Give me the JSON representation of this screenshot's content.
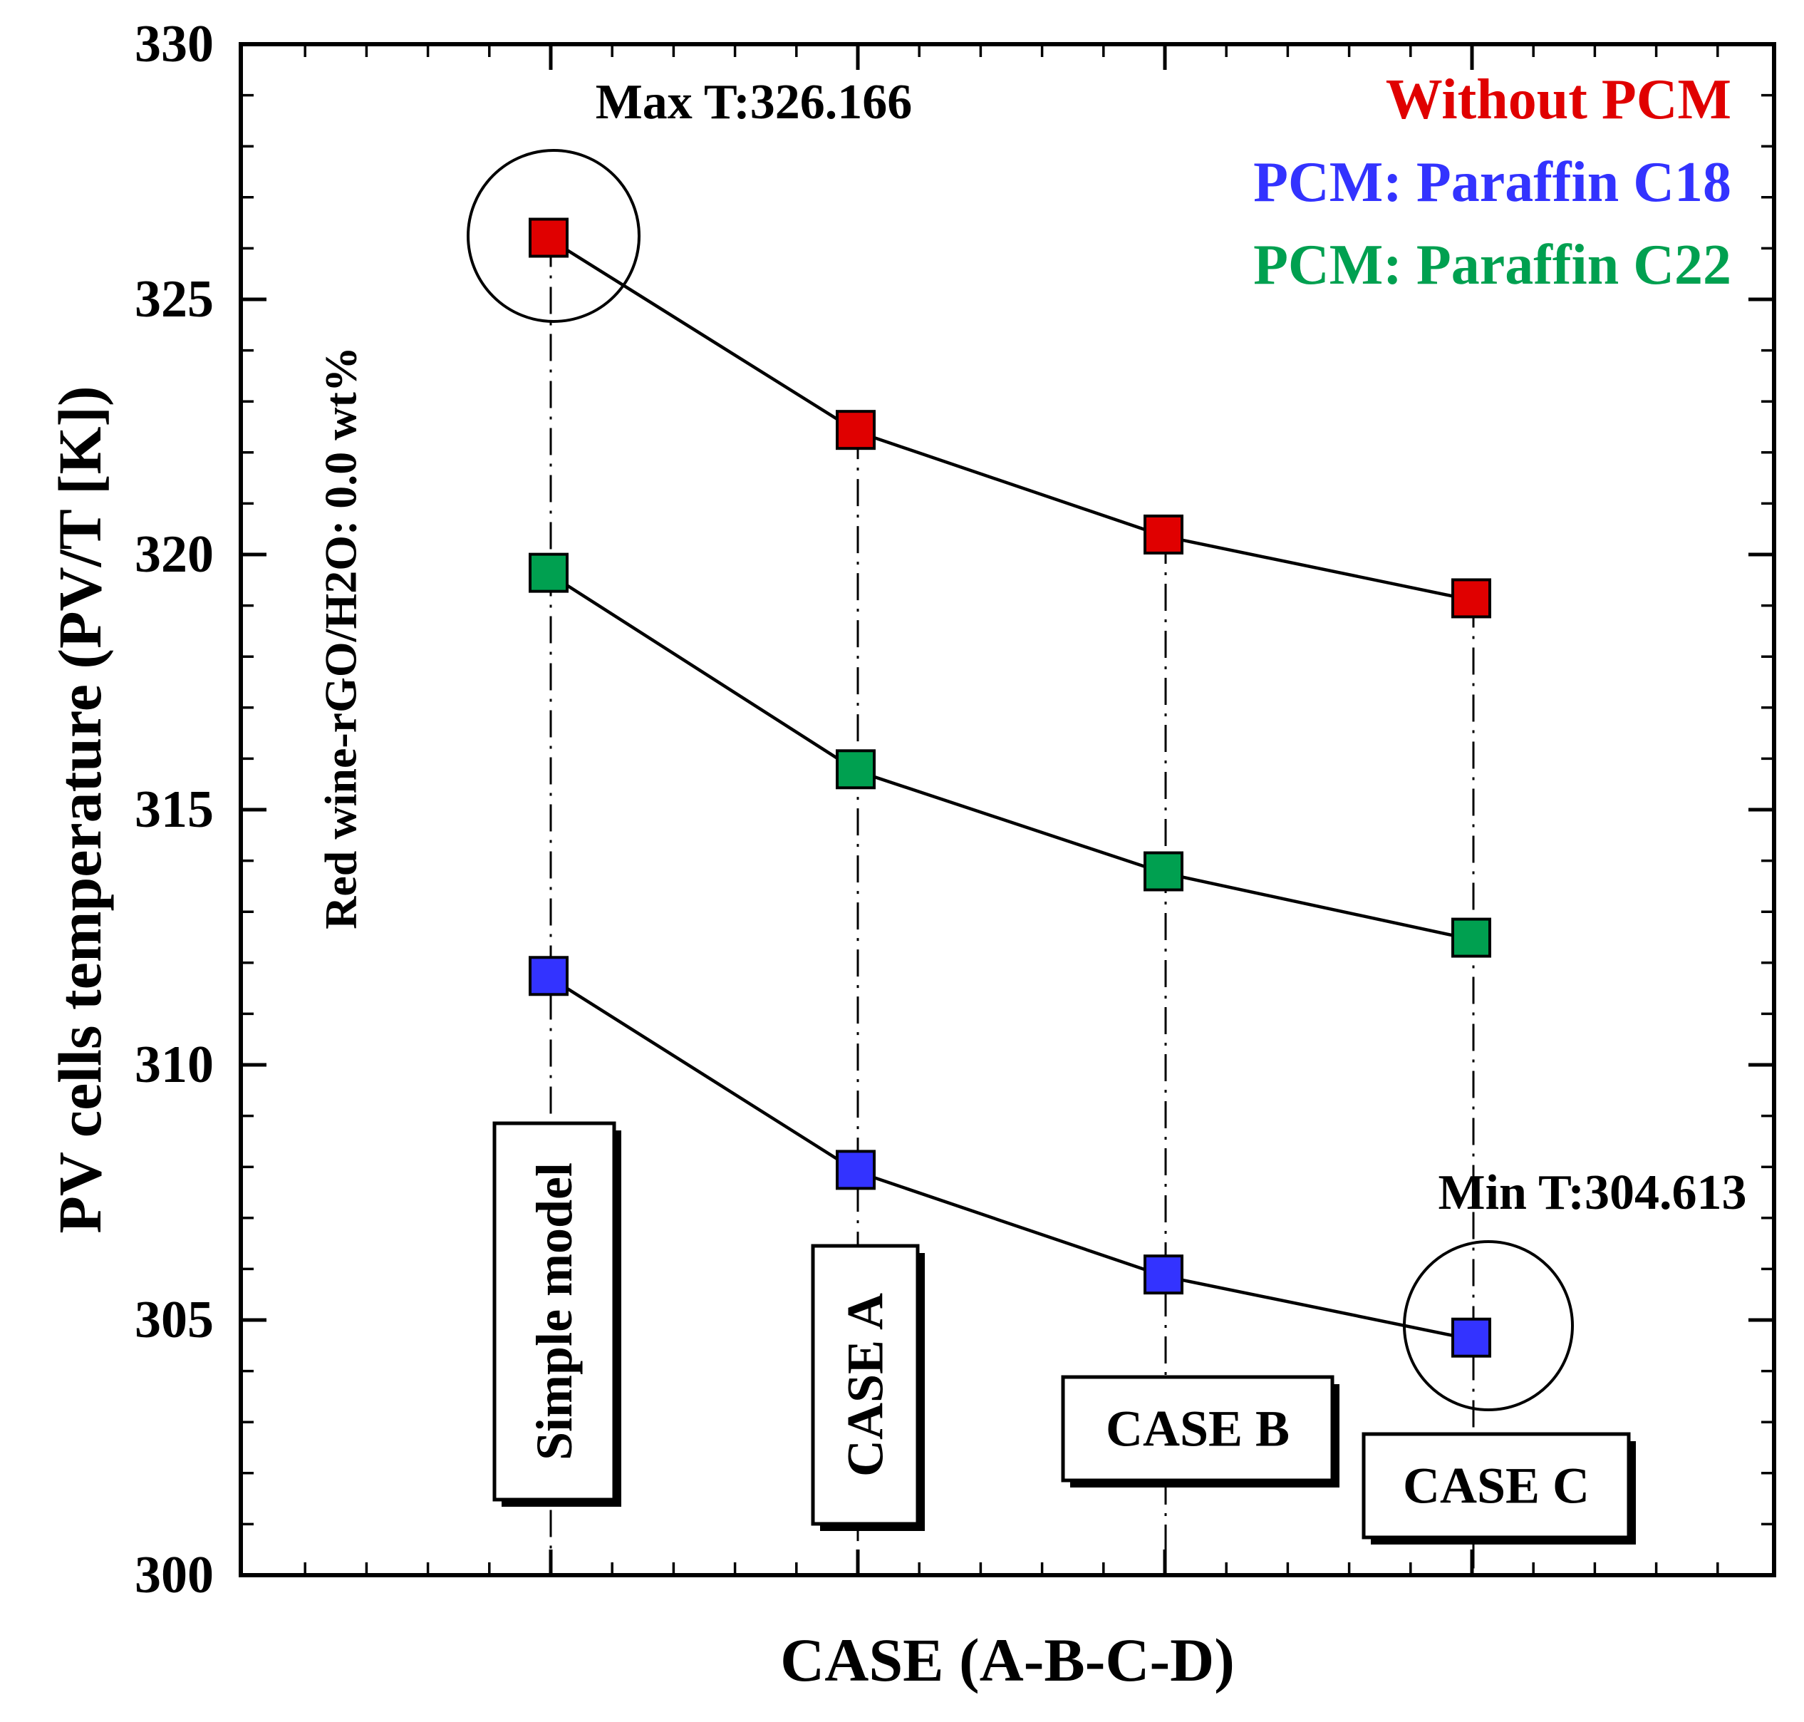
{
  "chart_data": {
    "type": "line",
    "title": "",
    "xlabel": "CASE (A-B-C-D)",
    "ylabel": "PV cells temperature (PV/T [K])",
    "ylim": [
      300,
      330
    ],
    "yticks": [
      300,
      305,
      310,
      315,
      320,
      325,
      330
    ],
    "categories": [
      "Simple model",
      "CASE A",
      "CASE B",
      "CASE C"
    ],
    "series": [
      {
        "name": "Without PCM",
        "color": "#e00000",
        "values": [
          326.166,
          322.4,
          320.35,
          319.1
        ]
      },
      {
        "name": "PCM: Paraffin C18",
        "color": "#3333ff",
        "values": [
          311.7,
          307.9,
          305.85,
          304.613
        ]
      },
      {
        "name": "PCM: Paraffin C22",
        "color": "#00a050",
        "values": [
          319.6,
          315.75,
          313.75,
          312.45
        ]
      }
    ],
    "annotations": {
      "subtitle": "Red wine-rGO/H2O: 0.0 wt%",
      "max_label": "Max T:326.166",
      "min_label": "Min T:304.613"
    },
    "legend_position": "top-right",
    "grid": false
  }
}
